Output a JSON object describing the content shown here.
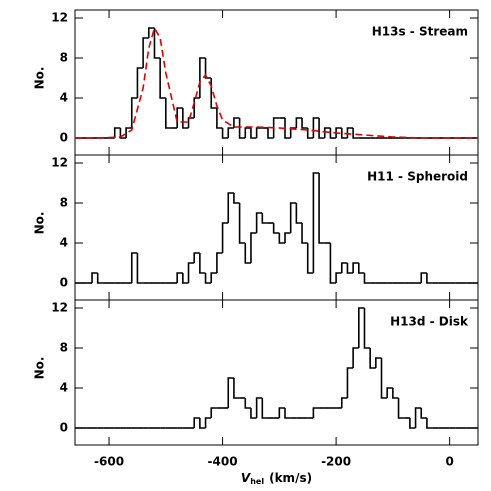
{
  "chart_data": [
    {
      "type": "histogram",
      "label": "H13s - Stream",
      "ylabel": "No.",
      "ylim": [
        -1.7,
        12.8
      ],
      "yticks": [
        0,
        4,
        8,
        12
      ],
      "color": "#000000",
      "bins": [
        -660,
        -650,
        -640,
        -630,
        -620,
        -610,
        -600,
        -590,
        -580,
        -570,
        -560,
        -550,
        -540,
        -530,
        -520,
        -510,
        -500,
        -490,
        -480,
        -470,
        -460,
        -450,
        -440,
        -430,
        -420,
        -410,
        -400,
        -390,
        -380,
        -370,
        -360,
        -350,
        -340,
        -330,
        -320,
        -310,
        -300,
        -290,
        -280,
        -270,
        -260,
        -250,
        -240,
        -230,
        -220,
        -210,
        -200,
        -190,
        -180,
        -170,
        -160,
        -150,
        -140,
        -130,
        -120,
        -110,
        -100,
        -90,
        -80,
        -70,
        -60,
        -50,
        -40,
        -30,
        -20,
        -10,
        0,
        10,
        20,
        30,
        40,
        50
      ],
      "counts": [
        0,
        0,
        0,
        0,
        0,
        0,
        0,
        1,
        0,
        1,
        4,
        7,
        10,
        11,
        8,
        4,
        1,
        1,
        3,
        1,
        2,
        4,
        8,
        6,
        3,
        1,
        0,
        1,
        2,
        0,
        1,
        0,
        1,
        1,
        0,
        2,
        2,
        0,
        1,
        2,
        1,
        0,
        2,
        0,
        1,
        0,
        1,
        0,
        1,
        0,
        0,
        0,
        0,
        0,
        0,
        0,
        0,
        0,
        0,
        0,
        0,
        0,
        0,
        0,
        0,
        0,
        0,
        0,
        0,
        0,
        0
      ],
      "fit": {
        "color": "#e00000",
        "x": [
          -660,
          -620,
          -580,
          -560,
          -540,
          -530,
          -520,
          -510,
          -500,
          -480,
          -460,
          -450,
          -440,
          -430,
          -420,
          -410,
          -400,
          -380,
          -340,
          -300,
          -250,
          -200,
          -150,
          -100,
          -50,
          0,
          50
        ],
        "values": [
          0,
          0,
          0.1,
          0.8,
          5,
          9,
          11,
          10,
          6.5,
          1.6,
          1.6,
          3.5,
          5.6,
          6.3,
          5.2,
          3.2,
          1.8,
          1.1,
          1.1,
          1.0,
          0.8,
          0.5,
          0.3,
          0.1,
          0,
          0,
          0
        ]
      }
    },
    {
      "type": "histogram",
      "label": "H11 - Spheroid",
      "ylabel": "No.",
      "ylim": [
        -1.7,
        12.8
      ],
      "yticks": [
        0,
        4,
        8,
        12
      ],
      "color": "#000000",
      "bins": [
        -660,
        -650,
        -640,
        -630,
        -620,
        -610,
        -600,
        -590,
        -580,
        -570,
        -560,
        -550,
        -540,
        -530,
        -520,
        -510,
        -500,
        -490,
        -480,
        -470,
        -460,
        -450,
        -440,
        -430,
        -420,
        -410,
        -400,
        -390,
        -380,
        -370,
        -360,
        -350,
        -340,
        -330,
        -320,
        -310,
        -300,
        -290,
        -280,
        -270,
        -260,
        -250,
        -240,
        -230,
        -220,
        -210,
        -200,
        -190,
        -180,
        -170,
        -160,
        -150,
        -140,
        -130,
        -120,
        -110,
        -100,
        -90,
        -80,
        -70,
        -60,
        -50,
        -40,
        -30,
        -20,
        -10,
        0,
        10,
        20,
        30,
        40,
        50
      ],
      "counts": [
        0,
        0,
        0,
        1,
        0,
        0,
        0,
        0,
        0,
        0,
        3,
        0,
        0,
        0,
        0,
        0,
        0,
        0,
        1,
        0,
        2,
        3,
        1,
        0,
        1,
        3,
        6,
        9,
        8,
        4,
        2,
        5,
        7,
        6,
        6,
        5,
        4,
        5,
        8,
        6,
        4,
        1,
        11,
        4,
        4,
        0,
        1,
        2,
        1,
        2,
        1,
        0,
        0,
        0,
        0,
        0,
        0,
        0,
        0,
        0,
        0,
        1,
        0,
        0,
        0,
        0,
        0,
        0,
        0,
        0,
        0
      ]
    },
    {
      "type": "histogram",
      "label": "H13d - Disk",
      "ylabel": "No.",
      "ylim": [
        -1.7,
        12.8
      ],
      "yticks": [
        0,
        4,
        8,
        12
      ],
      "color": "#000000",
      "xlim": [
        -660,
        50
      ],
      "xticks": [
        -600,
        -400,
        -200,
        0
      ],
      "xlabel": {
        "main": "V",
        "sub": "hel",
        "rest": "(km/s)"
      },
      "bins": [
        -660,
        -650,
        -640,
        -630,
        -620,
        -610,
        -600,
        -590,
        -580,
        -570,
        -560,
        -550,
        -540,
        -530,
        -520,
        -510,
        -500,
        -490,
        -480,
        -470,
        -460,
        -450,
        -440,
        -430,
        -420,
        -410,
        -400,
        -390,
        -380,
        -370,
        -360,
        -350,
        -340,
        -330,
        -320,
        -310,
        -300,
        -290,
        -280,
        -270,
        -260,
        -250,
        -240,
        -230,
        -220,
        -210,
        -200,
        -190,
        -180,
        -170,
        -160,
        -150,
        -140,
        -130,
        -120,
        -110,
        -100,
        -90,
        -80,
        -70,
        -60,
        -50,
        -40,
        -30,
        -20,
        -10,
        0,
        10,
        20,
        30,
        40,
        50
      ],
      "counts": [
        0,
        0,
        0,
        0,
        0,
        0,
        0,
        0,
        0,
        0,
        0,
        0,
        0,
        0,
        0,
        0,
        0,
        0,
        0,
        0,
        0,
        1,
        0,
        1,
        2,
        2,
        2,
        5,
        3,
        3,
        2,
        1,
        3,
        1,
        1,
        1,
        2,
        1,
        1,
        1,
        1,
        1,
        2,
        2,
        2,
        2,
        2,
        3,
        6,
        8,
        12,
        8,
        6,
        7,
        3,
        4,
        3,
        1,
        1,
        0,
        2,
        1,
        0,
        0,
        0,
        0,
        0,
        0,
        0,
        0,
        0
      ]
    }
  ]
}
